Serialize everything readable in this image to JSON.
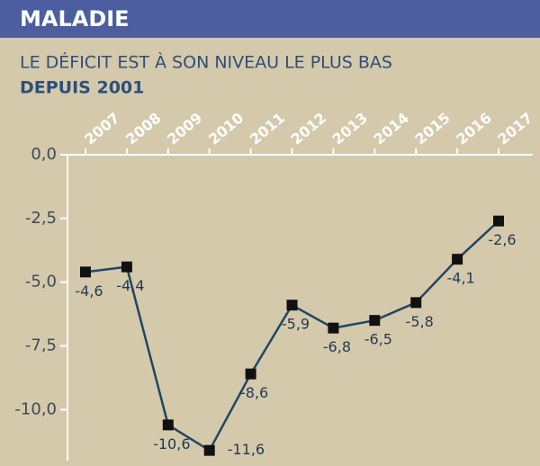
{
  "chart_data": {
    "type": "line",
    "title": "MALADIE",
    "subtitle": "LE DÉFICIT EST À SON NIVEAU LE PLUS BAS",
    "subtitle_emphasis": "DEPUIS 2001",
    "categories": [
      "2007",
      "2008",
      "2009",
      "2010",
      "2011",
      "2012",
      "2013",
      "2014",
      "2015",
      "2016",
      "2017"
    ],
    "values": [
      -4.6,
      -4.4,
      -10.6,
      -11.6,
      -8.6,
      -5.9,
      -6.8,
      -6.5,
      -5.8,
      -4.1,
      -2.6
    ],
    "value_labels": [
      "-4,6",
      "-4,4",
      "-10,6",
      "-11,6",
      "-8,6",
      "-5,9",
      "-6,8",
      "-6,5",
      "-5,8",
      "-4,1",
      "-2,6"
    ],
    "color": "#1f4766",
    "ylim": [
      -12,
      0
    ],
    "yticks": [
      {
        "value": 0,
        "label": "0,0"
      },
      {
        "value": -2.5,
        "label": "-2,5"
      },
      {
        "value": -5,
        "label": "-5,0"
      },
      {
        "value": -7.5,
        "label": "-7,5"
      },
      {
        "value": -10,
        "label": "-10,0"
      }
    ]
  }
}
